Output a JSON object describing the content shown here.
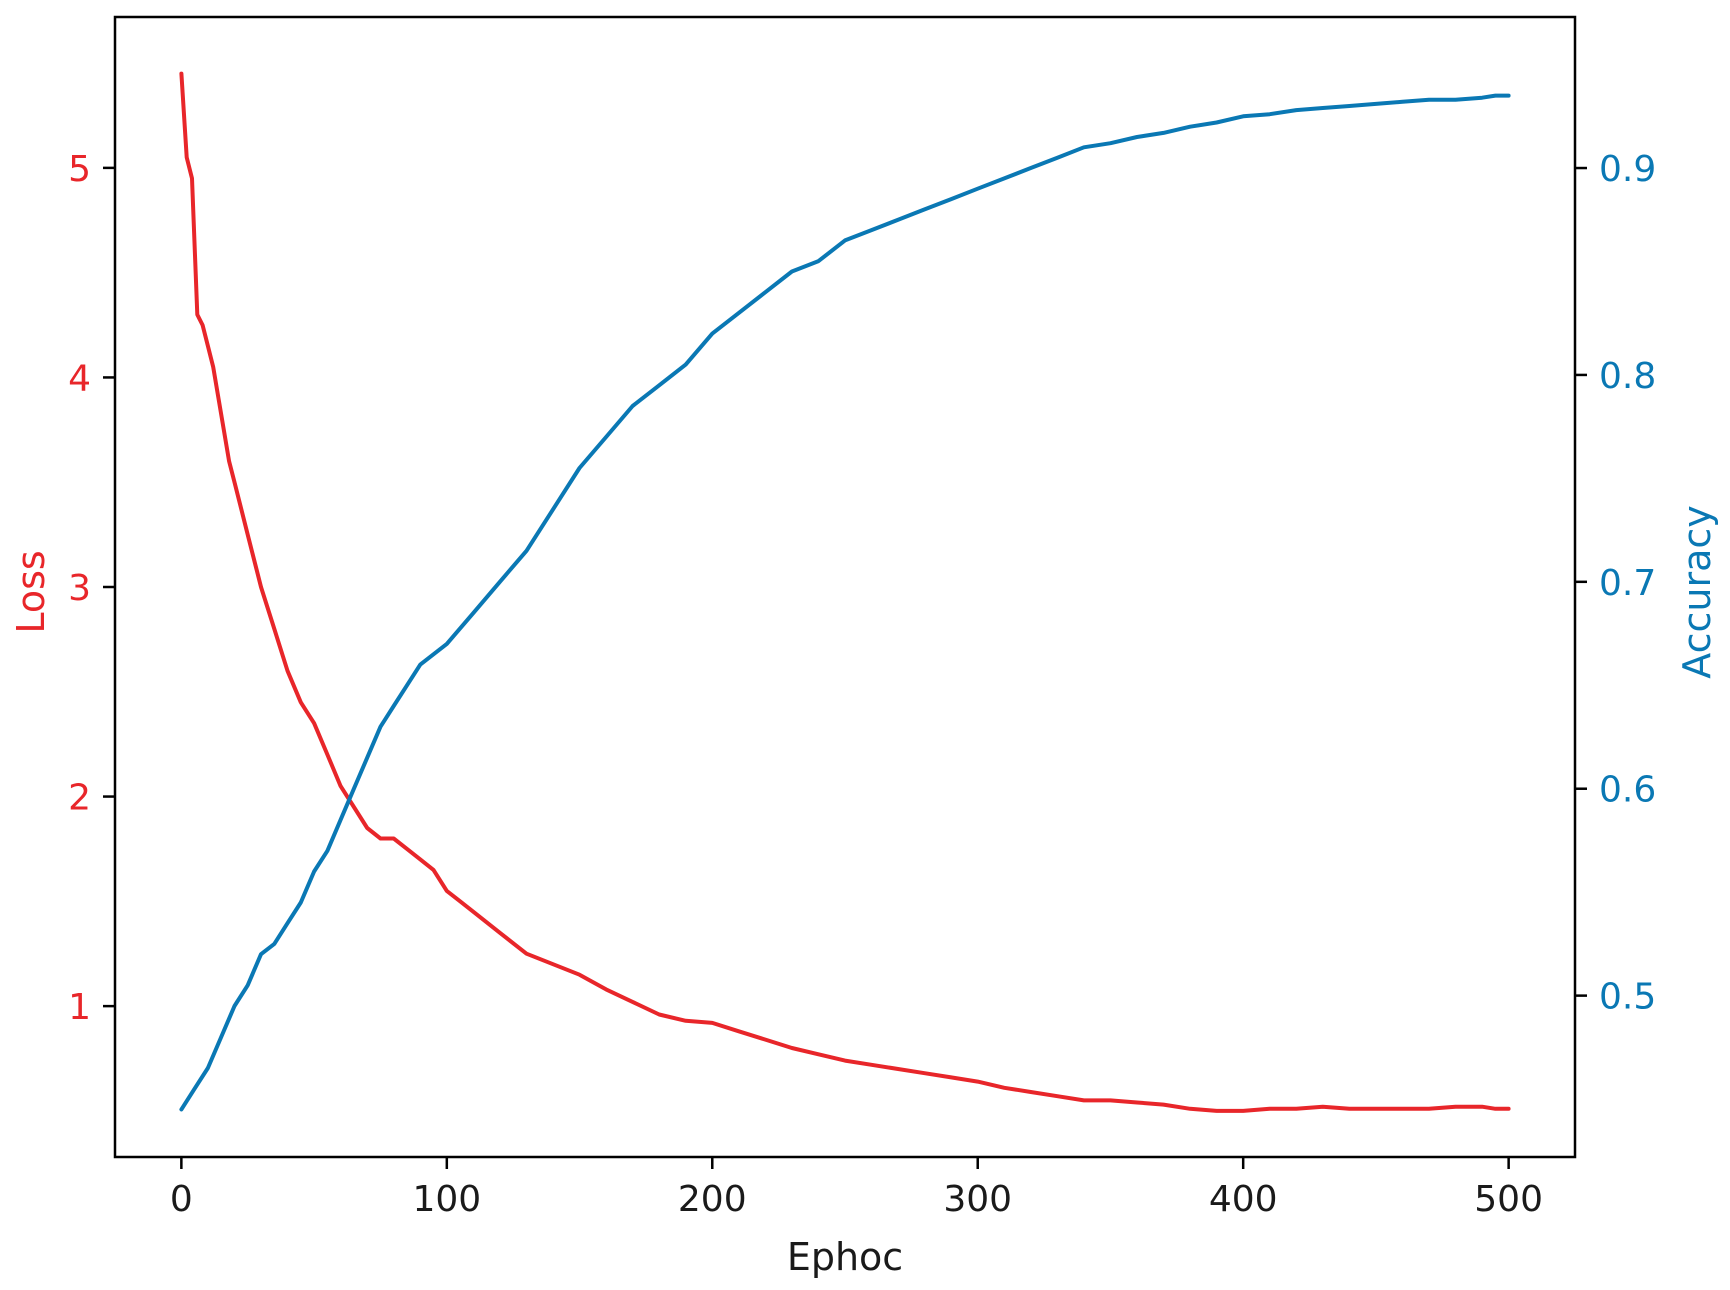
{
  "chart_data": {
    "type": "line",
    "xlabel": "Ephoc",
    "ylabel_left": "Loss",
    "ylabel_right": "Accuracy",
    "xlim": [
      -25,
      525
    ],
    "ylim_left": [
      0.28,
      5.72
    ],
    "ylim_right": [
      0.422,
      0.973
    ],
    "xticks": [
      0,
      100,
      200,
      300,
      400,
      500
    ],
    "yticks_left": [
      1,
      2,
      3,
      4,
      5
    ],
    "yticks_right": [
      0.5,
      0.6,
      0.7,
      0.8,
      0.9
    ],
    "grid": false,
    "legend": "none",
    "colors": {
      "loss": "#e8262a",
      "accuracy": "#0a78b4",
      "axis": "#000000"
    },
    "series": [
      {
        "axis": "left",
        "x": [
          0,
          2,
          4,
          6,
          8,
          10,
          12,
          14,
          16,
          18,
          20,
          25,
          30,
          35,
          40,
          45,
          50,
          55,
          60,
          65,
          70,
          75,
          80,
          85,
          90,
          95,
          100,
          105,
          110,
          120,
          130,
          140,
          150,
          160,
          170,
          180,
          190,
          200,
          210,
          220,
          230,
          240,
          250,
          260,
          270,
          280,
          290,
          300,
          310,
          320,
          330,
          340,
          350,
          360,
          370,
          380,
          390,
          400,
          410,
          420,
          430,
          440,
          450,
          460,
          470,
          480,
          490,
          495,
          500
        ],
        "values": [
          5.45,
          5.05,
          4.95,
          4.3,
          4.25,
          4.15,
          4.05,
          3.9,
          3.75,
          3.6,
          3.5,
          3.25,
          3.0,
          2.8,
          2.6,
          2.45,
          2.35,
          2.2,
          2.05,
          1.95,
          1.85,
          1.8,
          1.8,
          1.75,
          1.7,
          1.65,
          1.55,
          1.5,
          1.45,
          1.35,
          1.25,
          1.2,
          1.15,
          1.08,
          1.02,
          0.96,
          0.93,
          0.92,
          0.88,
          0.84,
          0.8,
          0.77,
          0.74,
          0.72,
          0.7,
          0.68,
          0.66,
          0.64,
          0.61,
          0.59,
          0.57,
          0.55,
          0.55,
          0.54,
          0.53,
          0.51,
          0.5,
          0.5,
          0.51,
          0.51,
          0.52,
          0.51,
          0.51,
          0.51,
          0.51,
          0.52,
          0.52,
          0.51,
          0.51
        ]
      },
      {
        "axis": "right",
        "x": [
          0,
          5,
          10,
          15,
          20,
          25,
          30,
          35,
          40,
          45,
          50,
          55,
          60,
          65,
          70,
          75,
          80,
          85,
          90,
          100,
          110,
          120,
          130,
          140,
          150,
          160,
          170,
          180,
          190,
          200,
          210,
          220,
          230,
          240,
          250,
          260,
          270,
          280,
          290,
          300,
          310,
          320,
          330,
          340,
          350,
          360,
          370,
          380,
          390,
          400,
          410,
          420,
          430,
          440,
          450,
          460,
          470,
          480,
          490,
          495,
          500
        ],
        "values": [
          0.445,
          0.455,
          0.465,
          0.48,
          0.495,
          0.505,
          0.52,
          0.525,
          0.535,
          0.545,
          0.56,
          0.57,
          0.585,
          0.6,
          0.615,
          0.63,
          0.64,
          0.65,
          0.66,
          0.67,
          0.685,
          0.7,
          0.715,
          0.735,
          0.755,
          0.77,
          0.785,
          0.795,
          0.805,
          0.82,
          0.83,
          0.84,
          0.85,
          0.855,
          0.865,
          0.87,
          0.875,
          0.88,
          0.885,
          0.89,
          0.895,
          0.9,
          0.905,
          0.91,
          0.912,
          0.915,
          0.917,
          0.92,
          0.922,
          0.925,
          0.926,
          0.928,
          0.929,
          0.93,
          0.931,
          0.932,
          0.933,
          0.933,
          0.934,
          0.935,
          0.935
        ]
      }
    ]
  }
}
